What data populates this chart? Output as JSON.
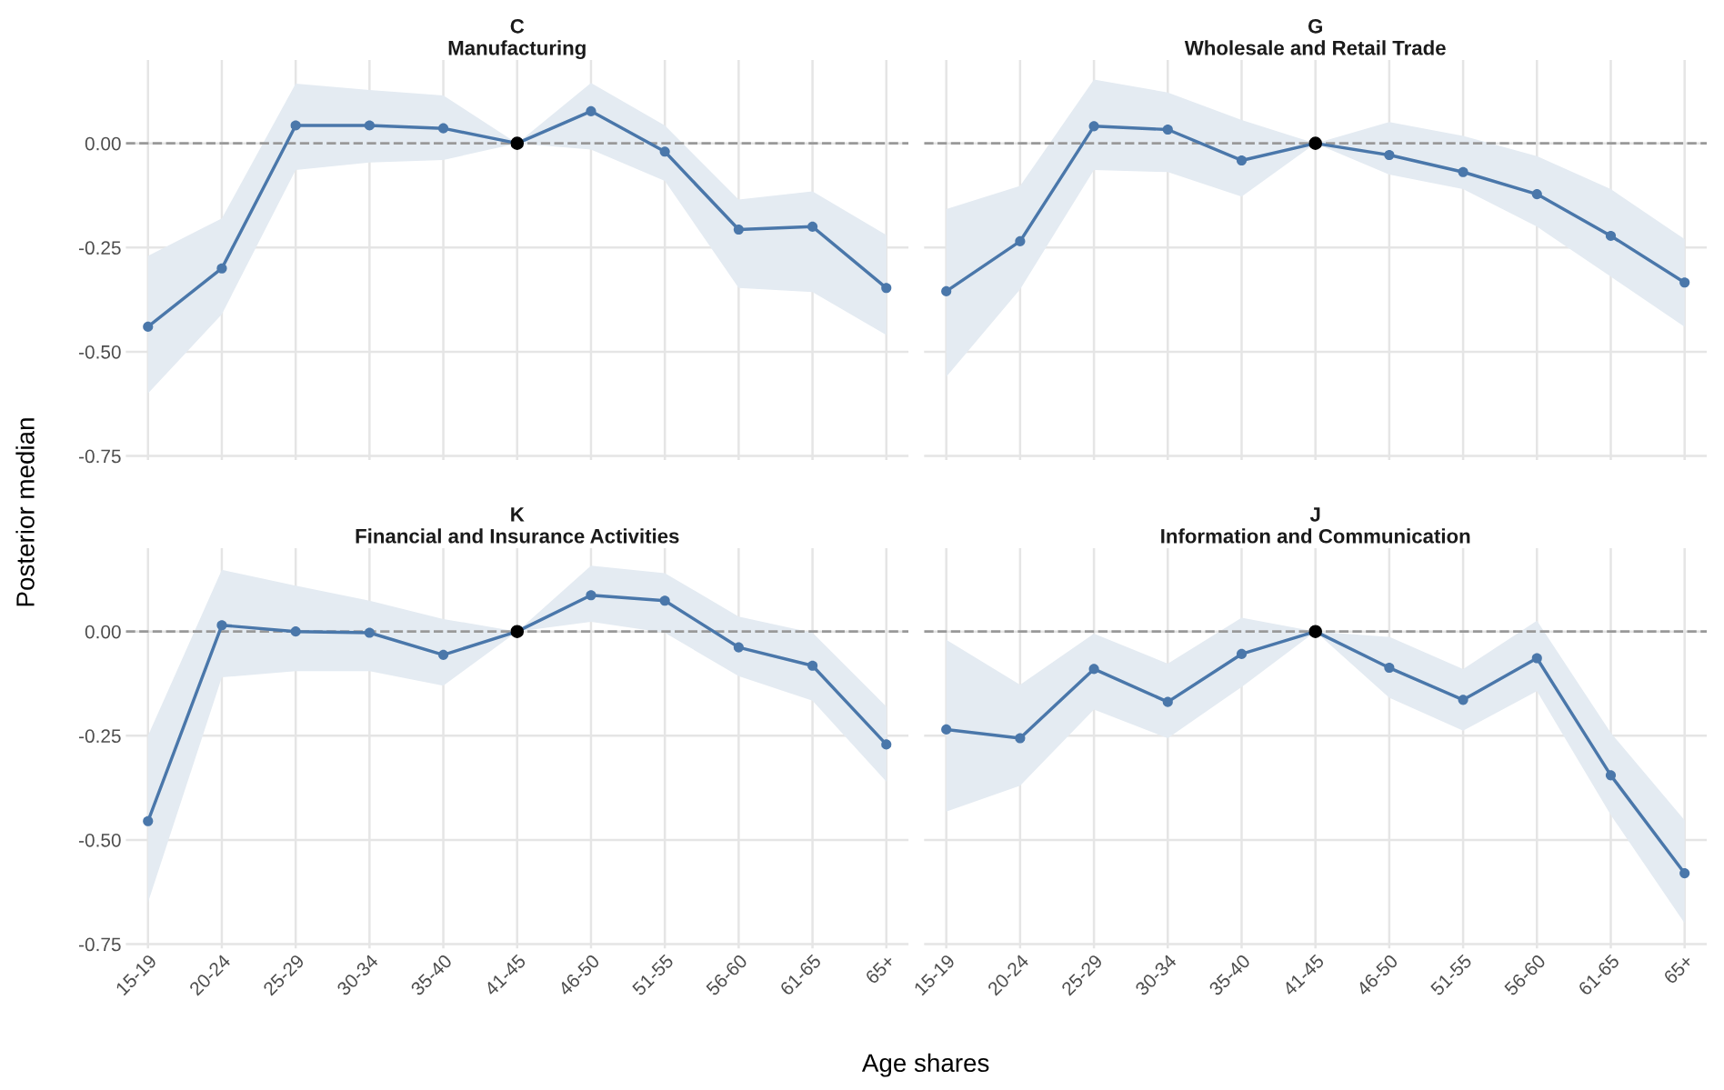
{
  "chart_data": [
    {
      "type": "line",
      "title": "C",
      "subtitle": "Manufacturing",
      "ylabel": "Posterior median",
      "categories": [
        "15-19",
        "20-24",
        "25-29",
        "30-34",
        "35-40",
        "41-45",
        "46-50",
        "51-55",
        "56-60",
        "61-65",
        "65+"
      ],
      "series": [
        {
          "type": "line",
          "color": "#4a77aa",
          "values": [
            -0.44,
            -0.3,
            0.043,
            0.043,
            0.036,
            0,
            0.077,
            -0.02,
            -0.207,
            -0.2,
            -0.347
          ],
          "lower": [
            -0.6,
            -0.41,
            -0.064,
            -0.046,
            -0.04,
            0,
            -0.015,
            -0.09,
            -0.347,
            -0.357,
            -0.46
          ],
          "upper": [
            -0.27,
            -0.18,
            0.143,
            0.128,
            0.115,
            0,
            0.145,
            0.043,
            -0.135,
            -0.115,
            -0.22
          ]
        },
        {
          "type": "scatter",
          "color": "#000000",
          "x": [
            "41-45"
          ],
          "values": [
            0
          ]
        }
      ],
      "ylim": [
        -0.76,
        0.2
      ],
      "yticks": [
        {
          "value": -0.75,
          "label": "-0.75"
        },
        {
          "value": -0.5,
          "label": "-0.50"
        },
        {
          "value": -0.25,
          "label": "-0.25"
        },
        {
          "value": 0,
          "label": "0.00"
        }
      ],
      "ref_lines": [
        {
          "axis": "y",
          "value": 0,
          "color": "#999999",
          "line_style": "dashed"
        }
      ],
      "grid": true,
      "marker": "circle",
      "tick_labels": "y"
    },
    {
      "type": "line",
      "title": "G",
      "subtitle": "Wholesale and Retail Trade",
      "categories": [
        "15-19",
        "20-24",
        "25-29",
        "30-34",
        "35-40",
        "41-45",
        "46-50",
        "51-55",
        "56-60",
        "61-65",
        "65+"
      ],
      "series": [
        {
          "type": "line",
          "color": "#4a77aa",
          "values": [
            -0.355,
            -0.235,
            0.041,
            0.033,
            -0.041,
            0,
            -0.028,
            -0.069,
            -0.122,
            -0.222,
            -0.334
          ],
          "lower": [
            -0.56,
            -0.35,
            -0.064,
            -0.069,
            -0.128,
            0,
            -0.075,
            -0.11,
            -0.2,
            -0.32,
            -0.44
          ],
          "upper": [
            -0.158,
            -0.102,
            0.153,
            0.122,
            0.056,
            0,
            0.051,
            0.018,
            -0.031,
            -0.11,
            -0.23
          ]
        },
        {
          "type": "scatter",
          "color": "#000000",
          "x": [
            "41-45"
          ],
          "values": [
            0
          ]
        }
      ],
      "ylim": [
        -0.76,
        0.2
      ],
      "yticks": [
        {
          "value": -0.75,
          "label": null
        },
        {
          "value": -0.5,
          "label": null
        },
        {
          "value": -0.25,
          "label": null
        },
        {
          "value": 0,
          "label": null
        }
      ],
      "ref_lines": [
        {
          "axis": "y",
          "value": 0,
          "color": "#999999",
          "line_style": "dashed"
        }
      ],
      "grid": true,
      "marker": "circle",
      "tick_labels": false
    },
    {
      "type": "line",
      "title": "K",
      "subtitle": "Financial and Insurance Activities",
      "xlabel": "Age shares",
      "categories": [
        "15-19",
        "20-24",
        "25-29",
        "30-34",
        "35-40",
        "41-45",
        "46-50",
        "51-55",
        "56-60",
        "61-65",
        "65+"
      ],
      "series": [
        {
          "type": "line",
          "color": "#4a77aa",
          "values": [
            -0.455,
            0.015,
            0,
            -0.003,
            -0.056,
            0,
            0.087,
            0.074,
            -0.038,
            -0.082,
            -0.271
          ],
          "lower": [
            -0.65,
            -0.11,
            -0.095,
            -0.095,
            -0.13,
            0,
            0.023,
            -0.003,
            -0.107,
            -0.166,
            -0.36
          ],
          "upper": [
            -0.25,
            0.148,
            0.11,
            0.074,
            0.03,
            0,
            0.158,
            0.14,
            0.036,
            -0.003,
            -0.18
          ]
        },
        {
          "type": "scatter",
          "color": "#000000",
          "x": [
            "41-45"
          ],
          "values": [
            0
          ]
        }
      ],
      "ylim": [
        -0.76,
        0.2
      ],
      "yticks": [
        {
          "value": -0.75,
          "label": "-0.75"
        },
        {
          "value": -0.5,
          "label": "-0.50"
        },
        {
          "value": -0.25,
          "label": "-0.25"
        },
        {
          "value": 0,
          "label": "0.00"
        }
      ],
      "ref_lines": [
        {
          "axis": "y",
          "value": 0,
          "color": "#999999",
          "line_style": "dashed"
        }
      ],
      "grid": true,
      "marker": "circle"
    },
    {
      "type": "line",
      "title": "J",
      "subtitle": "Information and Communication",
      "categories": [
        "15-19",
        "20-24",
        "25-29",
        "30-34",
        "35-40",
        "41-45",
        "46-50",
        "51-55",
        "56-60",
        "61-65",
        "65+"
      ],
      "series": [
        {
          "type": "line",
          "color": "#4a77aa",
          "values": [
            -0.235,
            -0.256,
            -0.09,
            -0.169,
            -0.054,
            0,
            -0.087,
            -0.164,
            -0.064,
            -0.345,
            -0.58
          ],
          "lower": [
            -0.432,
            -0.37,
            -0.187,
            -0.256,
            -0.133,
            0,
            -0.159,
            -0.238,
            -0.143,
            -0.44,
            -0.7
          ],
          "upper": [
            -0.02,
            -0.128,
            -0.005,
            -0.077,
            0.033,
            0,
            -0.013,
            -0.09,
            0.026,
            -0.243,
            -0.453
          ]
        },
        {
          "type": "scatter",
          "color": "#000000",
          "x": [
            "41-45"
          ],
          "values": [
            0
          ]
        }
      ],
      "ylim": [
        -0.76,
        0.2
      ],
      "yticks": [
        {
          "value": -0.75,
          "label": null
        },
        {
          "value": -0.5,
          "label": null
        },
        {
          "value": -0.25,
          "label": null
        },
        {
          "value": 0,
          "label": null
        }
      ],
      "ref_lines": [
        {
          "axis": "y",
          "value": 0,
          "color": "#999999",
          "line_style": "dashed"
        }
      ],
      "grid": true,
      "marker": "circle",
      "tick_labels": "x"
    }
  ]
}
